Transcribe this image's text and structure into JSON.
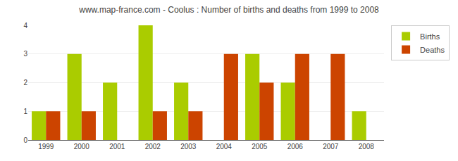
{
  "chart_data": {
    "type": "bar",
    "title": "www.map-france.com - Coolus : Number of births and deaths from 1999 to 2008",
    "categories": [
      "1999",
      "2000",
      "2001",
      "2002",
      "2003",
      "2004",
      "2005",
      "2006",
      "2007",
      "2008"
    ],
    "series": [
      {
        "name": "Births",
        "color": "#aacc00",
        "values": [
          1,
          3,
          2,
          4,
          2,
          0,
          3,
          2,
          0,
          1
        ]
      },
      {
        "name": "Deaths",
        "color": "#cc4400",
        "values": [
          1,
          1,
          0,
          1,
          1,
          3,
          2,
          3,
          3,
          0
        ]
      }
    ],
    "ylim": [
      0,
      4
    ],
    "yticks": [
      0,
      1,
      2,
      3,
      4
    ],
    "grid": true,
    "legend": "upper right"
  }
}
